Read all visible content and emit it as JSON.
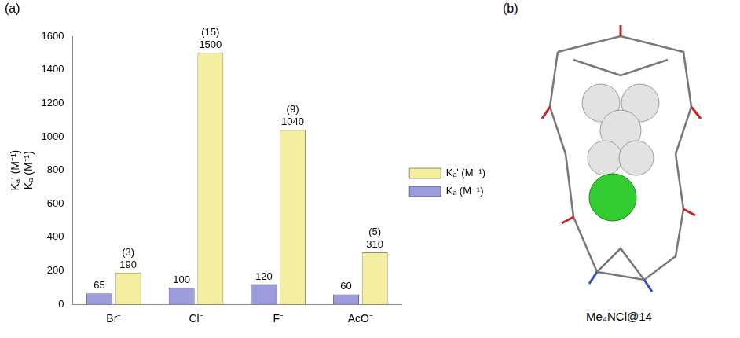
{
  "chart_data": {
    "type": "bar",
    "panel_label": "(a)",
    "ylabel": [
      "Kₐ' (M⁻¹)",
      "Kₐ (M⁻¹)"
    ],
    "categories": [
      "Br⁻",
      "Cl⁻",
      "F⁻",
      "AcO⁻"
    ],
    "series": [
      {
        "name": "Kₐ (M⁻¹)",
        "color": "#9c9cdc",
        "values": [
          65,
          100,
          120,
          60
        ]
      },
      {
        "name": "Kₐ' (M⁻¹)",
        "color": "#f3eea0",
        "values": [
          190,
          1500,
          1040,
          310
        ],
        "annotations": [
          "(3)",
          "(15)",
          "(9)",
          "(5)"
        ]
      }
    ],
    "ylim": [
      0,
      1600
    ],
    "yticks": [
      0,
      200,
      400,
      600,
      800,
      1000,
      1200,
      1400,
      1600
    ],
    "grid": false,
    "data_labels": true,
    "legend": "right"
  },
  "panel_b": {
    "label": "(b)",
    "caption": "Me₄NCl@14"
  }
}
